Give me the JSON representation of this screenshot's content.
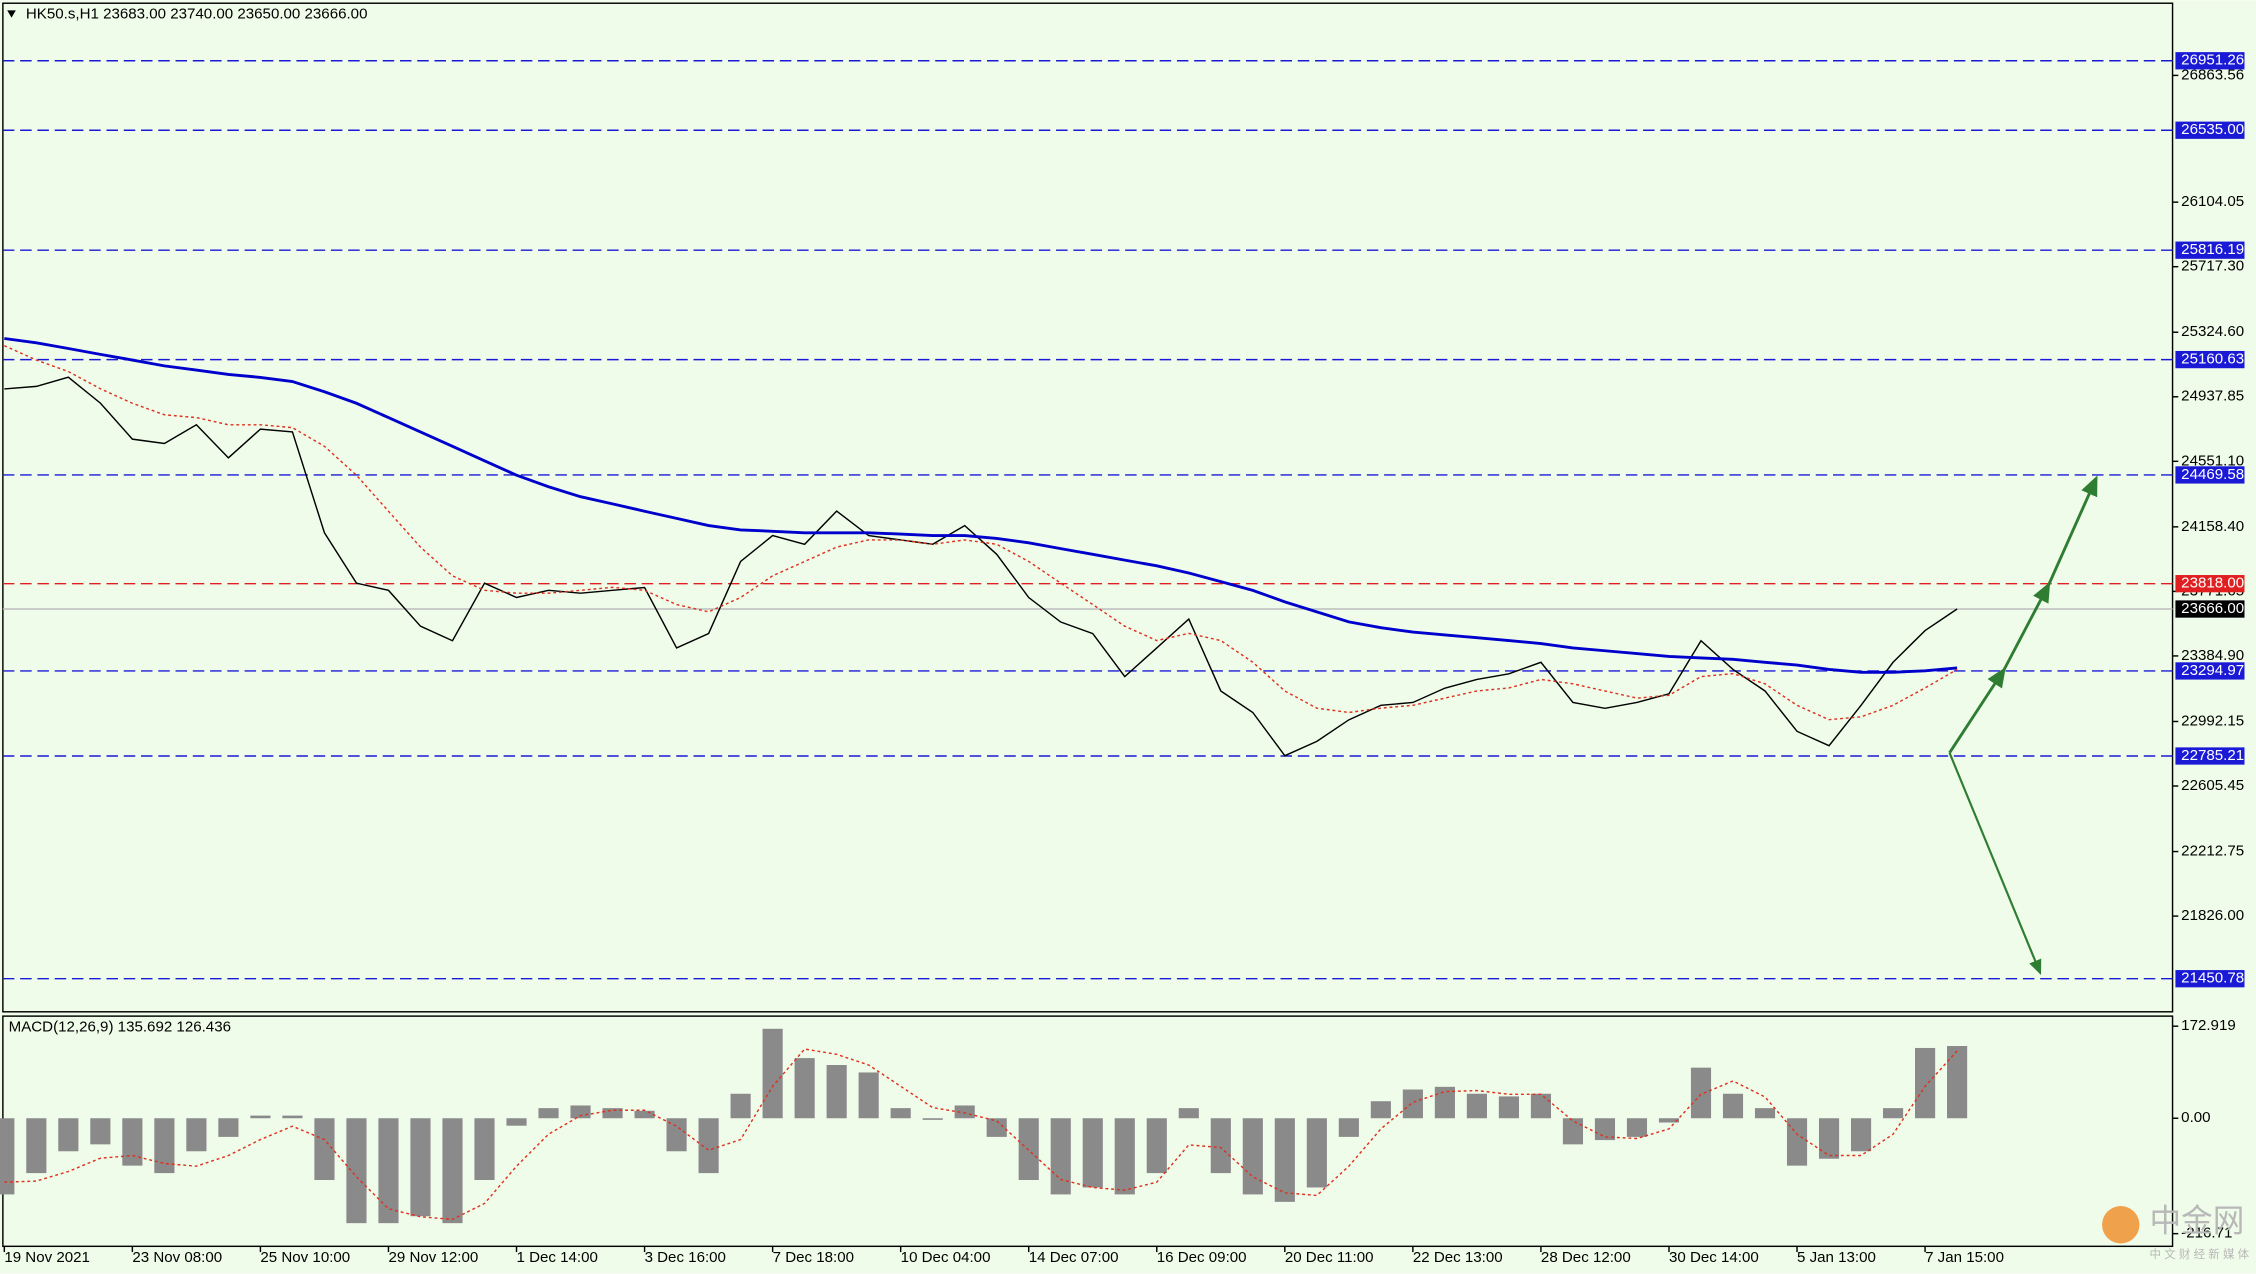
{
  "chart_data": [
    {
      "type": "line",
      "title": "HK50.s,H1  23683.00 23740.00 23650.00 23666.00",
      "categories": [
        "19 Nov 2021",
        null,
        null,
        null,
        "23 Nov 08:00",
        null,
        null,
        null,
        "25 Nov 10:00",
        null,
        null,
        null,
        "29 Nov 12:00",
        null,
        null,
        null,
        "1 Dec 14:00",
        null,
        null,
        null,
        "3 Dec 16:00",
        null,
        null,
        null,
        "7 Dec 18:00",
        null,
        null,
        null,
        "10 Dec 04:00",
        null,
        null,
        null,
        "14 Dec 07:00",
        null,
        null,
        null,
        "16 Dec 09:00",
        null,
        null,
        null,
        "20 Dec 11:00",
        null,
        null,
        null,
        "22 Dec 13:00",
        null,
        null,
        null,
        "28 Dec 12:00",
        null,
        null,
        null,
        "30 Dec 14:00",
        null,
        null,
        null,
        "5 Jan 13:00",
        null,
        null,
        null,
        "7 Jan 15:00",
        null
      ],
      "series": [
        {
          "name": "HK50.s",
          "color": "#000000",
          "values": [
            24985,
            25000,
            25055,
            24900,
            24684,
            24658,
            24770,
            24572,
            24744,
            24727,
            24123,
            23821,
            23778,
            23563,
            23476,
            23821,
            23735,
            23778,
            23761,
            23778,
            23795,
            23433,
            23519,
            23951,
            24106,
            24054,
            24253,
            24106,
            24080,
            24054,
            24166,
            23994,
            23735,
            23588,
            23519,
            23261,
            23433,
            23606,
            23175,
            23046,
            22787,
            22873,
            23002,
            23089,
            23106,
            23192,
            23244,
            23278,
            23347,
            23106,
            23071,
            23106,
            23158,
            23476,
            23304,
            23175,
            22933,
            22847,
            23089,
            23347,
            23537,
            23666
          ]
        },
        {
          "name": "MA slow",
          "color": "#0000cc",
          "values": [
            25287,
            25261,
            25227,
            25192,
            25158,
            25123,
            25098,
            25072,
            25054,
            25029,
            24968,
            24899,
            24813,
            24727,
            24641,
            24554,
            24468,
            24399,
            24339,
            24296,
            24252,
            24209,
            24166,
            24140,
            24132,
            24123,
            24123,
            24123,
            24115,
            24106,
            24106,
            24089,
            24063,
            24028,
            23994,
            23959,
            23925,
            23882,
            23830,
            23778,
            23709,
            23649,
            23589,
            23554,
            23528,
            23511,
            23494,
            23477,
            23459,
            23433,
            23416,
            23399,
            23382,
            23373,
            23365,
            23347,
            23330,
            23304,
            23287,
            23287,
            23296,
            23313
          ]
        },
        {
          "name": "MA fast",
          "color": "#e0301e",
          "values": [
            25244,
            25158,
            25089,
            24986,
            24899,
            24830,
            24813,
            24770,
            24770,
            24753,
            24641,
            24468,
            24252,
            24037,
            23865,
            23778,
            23761,
            23761,
            23778,
            23796,
            23778,
            23693,
            23649,
            23735,
            23865,
            23951,
            24037,
            24080,
            24080,
            24054,
            24080,
            24054,
            23951,
            23821,
            23693,
            23563,
            23477,
            23520,
            23477,
            23347,
            23175,
            23072,
            23046,
            23072,
            23089,
            23132,
            23175,
            23193,
            23244,
            23218,
            23175,
            23132,
            23149,
            23261,
            23279,
            23218,
            23089,
            23003,
            23020,
            23089,
            23193,
            23304
          ]
        }
      ],
      "ylim": [
        21252.5,
        27296.1
      ],
      "yticks": [
        26863.56,
        26104.05,
        {
          "value": 25717.3,
          "label": "25717.30"
        },
        {
          "value": 25324.6,
          "label": "25324.60"
        },
        24937.85,
        {
          "value": 24551.1,
          "label": "24551.10"
        },
        {
          "value": 24158.4,
          "label": "24158.40"
        },
        23771.65,
        {
          "value": 23384.9,
          "label": "23384.90"
        },
        22992.15,
        22605.45,
        22212.75,
        {
          "value": 21826,
          "label": "21826.00"
        }
      ],
      "levels": [
        26951.26,
        {
          "value": 26535,
          "label": "26535.00"
        },
        25816.19,
        25160.63,
        24469.58,
        {
          "value": 23818,
          "label": "23818.00"
        },
        23294.97,
        22785.21,
        21450.78
      ],
      "level_colors": [
        "#1a1ad6",
        "#1a1ad6",
        "#1a1ad6",
        "#1a1ad6",
        "#1a1ad6",
        "#e02020",
        "#1a1ad6",
        "#1a1ad6",
        "#1a1ad6"
      ],
      "last_price": {
        "value": 23666,
        "label": "23666.00"
      },
      "last_price_color": "#000000"
    },
    {
      "type": "bar",
      "title": "MACD(12,26,9) 135.692 126.436",
      "series": [
        {
          "name": "MACD",
          "color": "#8a8a8a",
          "values": [
            -143,
            -103,
            -62,
            -49,
            -89,
            -103,
            -62,
            -35,
            5,
            5,
            -116,
            -197,
            -197,
            -184,
            -197,
            -116,
            -14,
            19,
            24,
            19,
            14,
            -62,
            -103,
            46,
            168,
            113,
            100,
            86,
            19,
            -3,
            24,
            -35,
            -116,
            -143,
            -130,
            -143,
            -103,
            19,
            -103,
            -143,
            -157,
            -130,
            -35,
            32,
            54,
            59,
            46,
            41,
            46,
            -49,
            -41,
            -35,
            -8,
            95,
            46,
            19,
            -89,
            -76,
            -62,
            19,
            132,
            135.692
          ]
        },
        {
          "name": "Signal",
          "color": "#e0301e",
          "values": [
            -120,
            -118,
            -100,
            -75,
            -70,
            -85,
            -90,
            -70,
            -40,
            -15,
            -40,
            -110,
            -170,
            -185,
            -190,
            -160,
            -90,
            -30,
            5,
            15,
            15,
            -15,
            -60,
            -40,
            60,
            130,
            120,
            100,
            60,
            20,
            10,
            -5,
            -60,
            -115,
            -130,
            -135,
            -120,
            -50,
            -55,
            -110,
            -140,
            -145,
            -90,
            -20,
            30,
            50,
            52,
            45,
            45,
            -5,
            -35,
            -38,
            -20,
            45,
            70,
            40,
            -30,
            -70,
            -70,
            -30,
            60,
            126.436
          ]
        }
      ],
      "ylim": [
        -240.5,
        191.8
      ],
      "yticks": [
        172.919,
        {
          "value": 0,
          "label": "0.00"
        },
        -216.71
      ]
    }
  ],
  "watermark": {
    "name": "中金网",
    "tagline": "中 文 财 经 新 媒 体"
  }
}
